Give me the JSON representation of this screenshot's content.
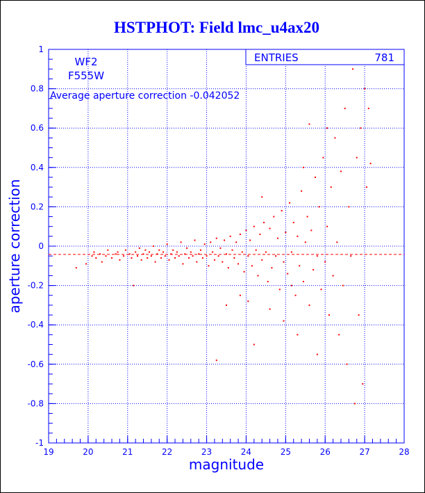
{
  "chart_data": {
    "type": "scatter",
    "title": "HSTPHOT: Field lmc_u4ax20",
    "xlabel": "magnitude",
    "ylabel": "aperture correction",
    "xlim": [
      19,
      28
    ],
    "ylim": [
      -1,
      1
    ],
    "xticks": [
      "19",
      "20",
      "21",
      "22",
      "23",
      "24",
      "25",
      "26",
      "27",
      "28"
    ],
    "yticks": [
      "-1",
      "-0.8",
      "-0.6",
      "-0.4",
      "-0.2",
      "0",
      "0.2",
      "0.4",
      "0.6",
      "0.8",
      "1"
    ],
    "grid": true,
    "stats_box": {
      "label": "ENTRIES",
      "value": "781"
    },
    "annotations": {
      "chip": "WF2",
      "filter": "F555W",
      "average_label": "Average aperture correction -0.042052"
    },
    "average_line": -0.042052,
    "point_color": "#ff0000",
    "axis_color": "#0000ff",
    "title_color": "#0000ff",
    "points": [
      [
        19.7,
        -0.11
      ],
      [
        19.95,
        -0.09
      ],
      [
        20.1,
        -0.05
      ],
      [
        20.15,
        -0.03
      ],
      [
        20.2,
        -0.06
      ],
      [
        20.3,
        -0.04
      ],
      [
        20.35,
        -0.08
      ],
      [
        20.45,
        -0.05
      ],
      [
        20.5,
        -0.02
      ],
      [
        20.6,
        -0.06
      ],
      [
        20.7,
        -0.04
      ],
      [
        20.75,
        -0.03
      ],
      [
        20.8,
        -0.07
      ],
      [
        20.9,
        -0.05
      ],
      [
        20.95,
        -0.02
      ],
      [
        21.05,
        -0.04
      ],
      [
        21.1,
        -0.06
      ],
      [
        21.15,
        -0.2
      ],
      [
        21.2,
        -0.03
      ],
      [
        21.25,
        -0.05
      ],
      [
        21.3,
        -0.01
      ],
      [
        21.35,
        -0.07
      ],
      [
        21.4,
        -0.04
      ],
      [
        21.45,
        -0.02
      ],
      [
        21.5,
        -0.06
      ],
      [
        21.55,
        -0.03
      ],
      [
        21.6,
        -0.05
      ],
      [
        21.65,
        0.0
      ],
      [
        21.7,
        -0.08
      ],
      [
        21.75,
        -0.04
      ],
      [
        21.8,
        -0.02
      ],
      [
        21.85,
        -0.06
      ],
      [
        21.9,
        -0.03
      ],
      [
        21.95,
        -0.05
      ],
      [
        22.0,
        0.01
      ],
      [
        22.05,
        -0.07
      ],
      [
        22.1,
        -0.04
      ],
      [
        22.15,
        -0.02
      ],
      [
        22.2,
        -0.06
      ],
      [
        22.25,
        -0.03
      ],
      [
        22.3,
        -0.05
      ],
      [
        22.35,
        0.02
      ],
      [
        22.4,
        -0.09
      ],
      [
        22.45,
        -0.04
      ],
      [
        22.5,
        -0.01
      ],
      [
        22.55,
        -0.06
      ],
      [
        22.6,
        -0.03
      ],
      [
        22.65,
        -0.05
      ],
      [
        22.7,
        0.03
      ],
      [
        22.75,
        -0.08
      ],
      [
        22.8,
        -0.04
      ],
      [
        22.85,
        -0.02
      ],
      [
        22.9,
        -0.06
      ],
      [
        22.95,
        0.01
      ],
      [
        23.0,
        -0.05
      ],
      [
        23.05,
        -0.1
      ],
      [
        23.1,
        0.02
      ],
      [
        23.15,
        -0.03
      ],
      [
        23.2,
        -0.07
      ],
      [
        23.25,
        0.04
      ],
      [
        23.3,
        -0.05
      ],
      [
        23.35,
        -0.01
      ],
      [
        23.4,
        -0.08
      ],
      [
        23.45,
        0.03
      ],
      [
        23.5,
        -0.04
      ],
      [
        23.55,
        -0.11
      ],
      [
        23.6,
        0.05
      ],
      [
        23.65,
        -0.02
      ],
      [
        23.7,
        -0.06
      ],
      [
        23.75,
        0.02
      ],
      [
        23.8,
        -0.09
      ],
      [
        23.85,
        0.06
      ],
      [
        23.9,
        -0.03
      ],
      [
        23.95,
        -0.13
      ],
      [
        24.0,
        0.08
      ],
      [
        24.05,
        -0.05
      ],
      [
        24.1,
        0.03
      ],
      [
        24.15,
        -0.1
      ],
      [
        24.2,
        0.1
      ],
      [
        24.25,
        -0.02
      ],
      [
        24.3,
        -0.15
      ],
      [
        24.35,
        0.06
      ],
      [
        24.4,
        -0.07
      ],
      [
        24.45,
        0.12
      ],
      [
        24.5,
        -0.03
      ],
      [
        24.55,
        -0.18
      ],
      [
        24.6,
        0.09
      ],
      [
        24.65,
        -0.11
      ],
      [
        24.7,
        0.15
      ],
      [
        24.75,
        -0.05
      ],
      [
        24.8,
        0.04
      ],
      [
        24.85,
        -0.22
      ],
      [
        24.9,
        0.18
      ],
      [
        24.95,
        -0.08
      ],
      [
        25.0,
        0.07
      ],
      [
        25.05,
        -0.14
      ],
      [
        25.1,
        0.22
      ],
      [
        25.15,
        -0.03
      ],
      [
        25.2,
        0.12
      ],
      [
        25.25,
        -0.25
      ],
      [
        25.3,
        0.05
      ],
      [
        25.35,
        -0.1
      ],
      [
        25.4,
        0.28
      ],
      [
        25.45,
        -0.18
      ],
      [
        25.5,
        0.02
      ],
      [
        25.55,
        0.15
      ],
      [
        25.6,
        -0.3
      ],
      [
        25.65,
        0.08
      ],
      [
        25.7,
        -0.12
      ],
      [
        25.75,
        0.35
      ],
      [
        25.8,
        -0.05
      ],
      [
        25.85,
        0.2
      ],
      [
        25.9,
        -0.22
      ],
      [
        25.95,
        0.45
      ],
      [
        26.0,
        -0.08
      ],
      [
        26.05,
        0.1
      ],
      [
        26.1,
        -0.35
      ],
      [
        26.15,
        0.3
      ],
      [
        26.2,
        -0.15
      ],
      [
        26.25,
        0.55
      ],
      [
        26.3,
        0.02
      ],
      [
        26.35,
        -0.45
      ],
      [
        26.4,
        0.38
      ],
      [
        26.45,
        -0.2
      ],
      [
        26.5,
        0.7
      ],
      [
        26.55,
        -0.6
      ],
      [
        26.6,
        0.2
      ],
      [
        26.65,
        -0.05
      ],
      [
        26.7,
        0.9
      ],
      [
        26.75,
        -0.8
      ],
      [
        26.8,
        0.45
      ],
      [
        26.85,
        -0.35
      ],
      [
        26.9,
        0.6
      ],
      [
        26.95,
        -0.7
      ],
      [
        27.0,
        0.8
      ],
      [
        27.05,
        0.3
      ],
      [
        27.1,
        0.7
      ],
      [
        27.15,
        0.42
      ],
      [
        24.05,
        -0.28
      ],
      [
        24.2,
        -0.5
      ],
      [
        23.25,
        -0.58
      ],
      [
        23.5,
        -0.3
      ],
      [
        24.6,
        -0.32
      ],
      [
        25.3,
        -0.45
      ],
      [
        25.6,
        0.62
      ],
      [
        25.8,
        -0.55
      ],
      [
        26.05,
        0.6
      ],
      [
        25.15,
        -0.2
      ],
      [
        24.95,
        -0.38
      ],
      [
        23.85,
        -0.25
      ],
      [
        24.4,
        0.25
      ],
      [
        25.45,
        0.4
      ]
    ]
  }
}
